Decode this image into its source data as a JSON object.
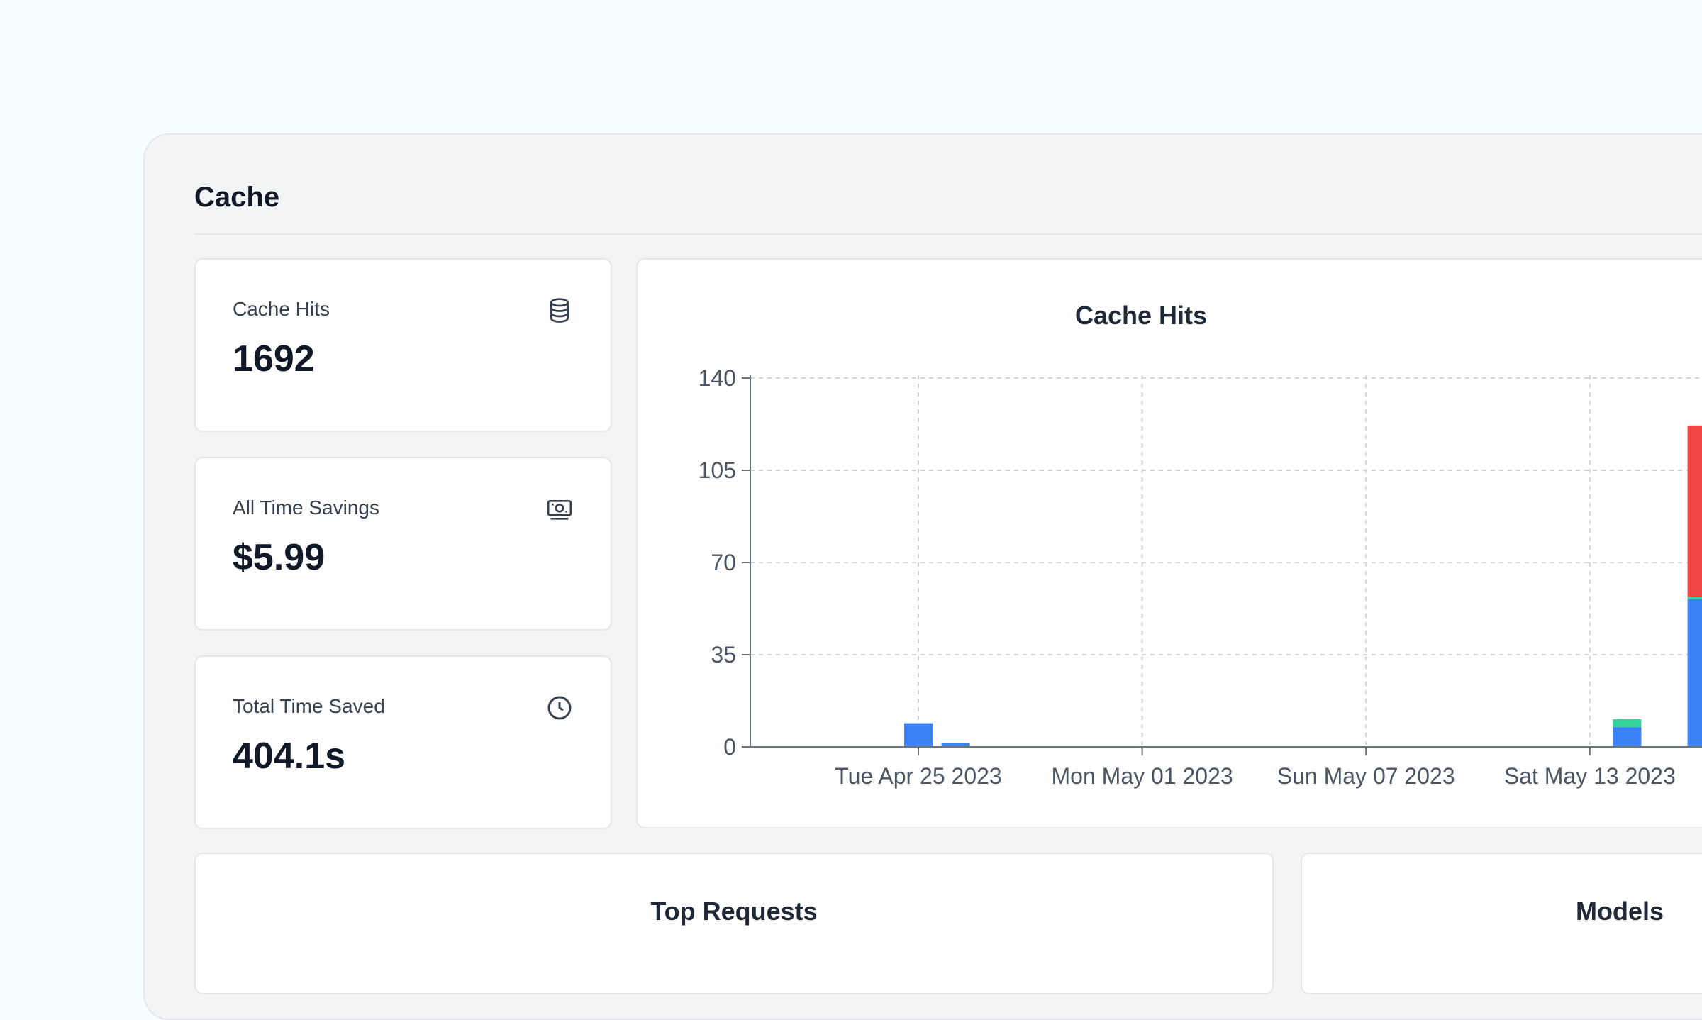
{
  "section": {
    "title": "Cache"
  },
  "stats": [
    {
      "label": "Cache Hits",
      "value": "1692",
      "icon": "database-icon"
    },
    {
      "label": "All Time Savings",
      "value": "$5.99",
      "icon": "money-icon"
    },
    {
      "label": "Total Time Saved",
      "value": "404.1s",
      "icon": "clock-icon"
    }
  ],
  "chart": {
    "title": "Cache Hits"
  },
  "chart_data": {
    "type": "bar",
    "stacked": true,
    "grid": true,
    "ylim": [
      0,
      140
    ],
    "yticks": [
      "0",
      "35",
      "70",
      "105",
      "140"
    ],
    "xtick_labels": [
      "Tue Apr 25 2023",
      "Mon May 01 2023",
      "Sun May 07 2023",
      "Sat May 13 2023"
    ],
    "colors": {
      "blue": "#3b82f6",
      "green": "#34d399",
      "red": "#ef4444"
    },
    "bars": [
      {
        "date": "2023-04-25",
        "segments": [
          {
            "color": "blue",
            "value": 9
          }
        ]
      },
      {
        "date": "2023-04-26",
        "segments": [
          {
            "color": "blue",
            "value": 1.5
          }
        ]
      },
      {
        "date": "2023-05-14",
        "segments": [
          {
            "color": "blue",
            "value": 7.5
          },
          {
            "color": "green",
            "value": 3
          }
        ]
      },
      {
        "date": "2023-05-16",
        "segments": [
          {
            "color": "blue",
            "value": 56
          },
          {
            "color": "green",
            "value": 1
          },
          {
            "color": "red",
            "value": 65
          }
        ]
      }
    ]
  },
  "bottom": {
    "top_requests_title": "Top Requests",
    "models_title": "Models"
  }
}
